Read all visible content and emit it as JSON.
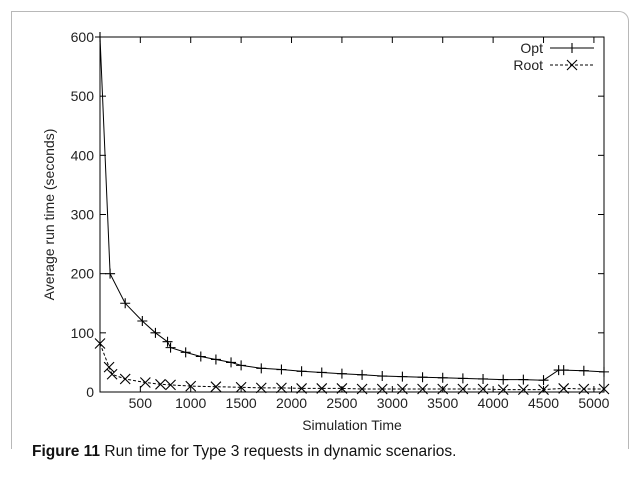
{
  "caption": {
    "label": "Figure 11",
    "text": " Run time for Type 3 requests in dynamic scenarios."
  },
  "chart_data": {
    "type": "line",
    "title": "",
    "xlabel": "Simulation Time",
    "ylabel": "Average run time (seconds)",
    "xlim": [
      100,
      5100
    ],
    "ylim": [
      0,
      600
    ],
    "xticks": [
      500,
      1000,
      1500,
      2000,
      2500,
      3000,
      3500,
      4000,
      4500,
      5000
    ],
    "yticks": [
      0,
      100,
      200,
      300,
      400,
      500,
      600
    ],
    "grid": false,
    "legend": "top-right",
    "series": [
      {
        "name": "Opt",
        "marker": "plus",
        "dash": "solid",
        "color": "#000000",
        "x": [
          100,
          200,
          350,
          520,
          650,
          770,
          800,
          950,
          1100,
          1250,
          1400,
          1500,
          1700,
          1900,
          2100,
          2300,
          2500,
          2700,
          2900,
          3100,
          3300,
          3500,
          3700,
          3900,
          4100,
          4300,
          4500,
          4650,
          4700,
          4900,
          5100
        ],
        "y": [
          600,
          200,
          150,
          120,
          100,
          85,
          75,
          67,
          60,
          55,
          50,
          45,
          40,
          38,
          35,
          33,
          31,
          29,
          27,
          26,
          25,
          24,
          23,
          22,
          21,
          21,
          20,
          37,
          37,
          36,
          34
        ]
      },
      {
        "name": "Root",
        "marker": "x",
        "dash": "dashed",
        "color": "#000000",
        "x": [
          100,
          190,
          220,
          350,
          550,
          700,
          800,
          1000,
          1250,
          1500,
          1700,
          1900,
          2100,
          2300,
          2500,
          2700,
          2900,
          3100,
          3300,
          3500,
          3700,
          3900,
          4100,
          4300,
          4500,
          4700,
          4900,
          5100
        ],
        "y": [
          82,
          42,
          30,
          22,
          16,
          13,
          12,
          10,
          9,
          8,
          7,
          7,
          6,
          6,
          6,
          5,
          5,
          5,
          5,
          5,
          5,
          5,
          4,
          4,
          4,
          6,
          5,
          5
        ]
      }
    ]
  }
}
